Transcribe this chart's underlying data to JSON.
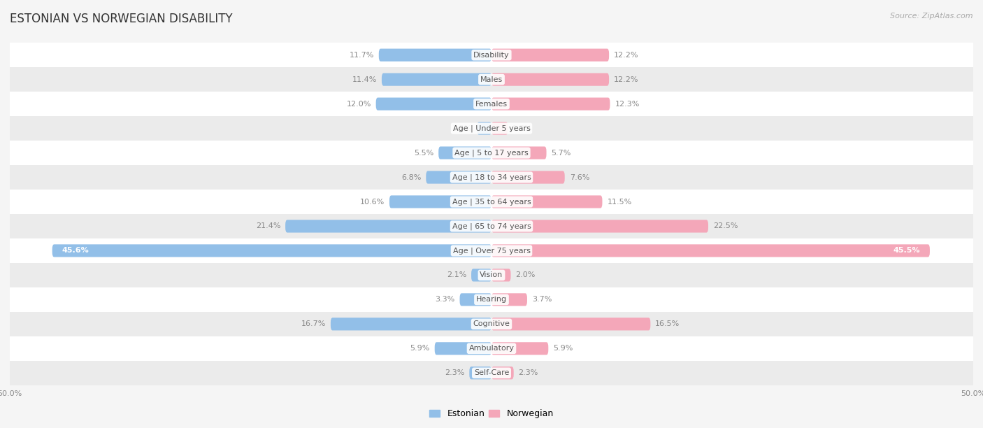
{
  "title": "ESTONIAN VS NORWEGIAN DISABILITY",
  "source": "Source: ZipAtlas.com",
  "categories": [
    "Disability",
    "Males",
    "Females",
    "Age | Under 5 years",
    "Age | 5 to 17 years",
    "Age | 18 to 34 years",
    "Age | 35 to 64 years",
    "Age | 65 to 74 years",
    "Age | Over 75 years",
    "Vision",
    "Hearing",
    "Cognitive",
    "Ambulatory",
    "Self-Care"
  ],
  "estonian": [
    11.7,
    11.4,
    12.0,
    1.5,
    5.5,
    6.8,
    10.6,
    21.4,
    45.6,
    2.1,
    3.3,
    16.7,
    5.9,
    2.3
  ],
  "norwegian": [
    12.2,
    12.2,
    12.3,
    1.7,
    5.7,
    7.6,
    11.5,
    22.5,
    45.5,
    2.0,
    3.7,
    16.5,
    5.9,
    2.3
  ],
  "estonian_color": "#92bfe8",
  "norwegian_color": "#f4a7b9",
  "bar_height": 0.52,
  "max_value": 50.0,
  "background_color": "#f5f5f5",
  "row_color_light": "#ffffff",
  "row_color_dark": "#ebebeb",
  "title_fontsize": 12,
  "label_fontsize": 8,
  "category_fontsize": 8,
  "legend_fontsize": 9,
  "source_fontsize": 8
}
